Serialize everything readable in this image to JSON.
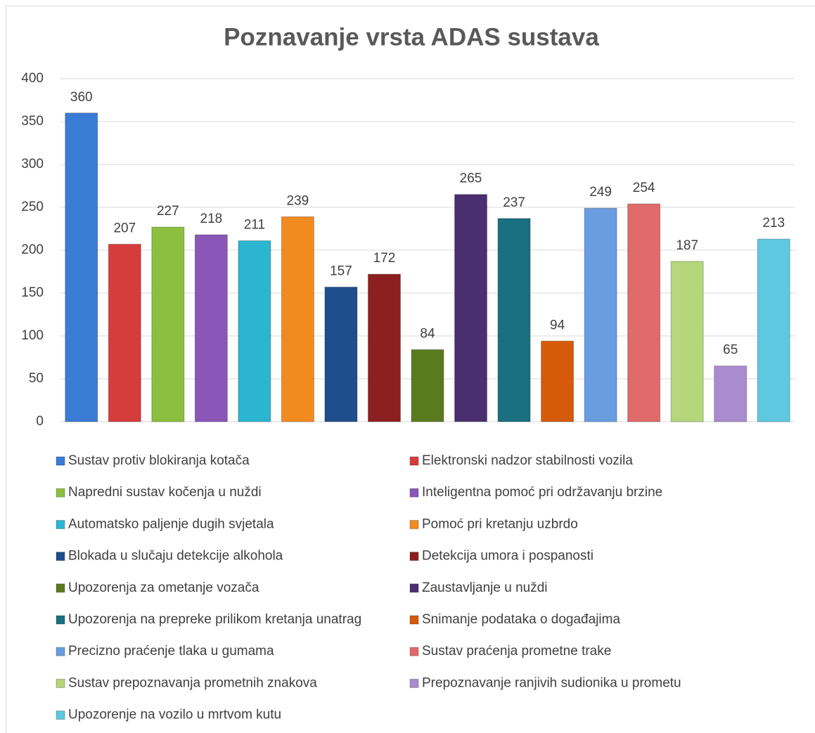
{
  "chart_data": {
    "type": "bar",
    "title": "Poznavanje vrsta ADAS sustava",
    "ylim": [
      0,
      400
    ],
    "yticks": [
      0,
      50,
      100,
      150,
      200,
      250,
      300,
      350,
      400
    ],
    "grid": true,
    "legend": "bottom",
    "series": [
      {
        "name": "Sustav protiv blokiranja kotača",
        "color": "#3a7bd5",
        "values": [
          360
        ]
      },
      {
        "name": "Elektronski nadzor stabilnosti vozila",
        "color": "#d63c3c",
        "values": [
          207
        ]
      },
      {
        "name": "Napredni sustav kočenja u nuždi",
        "color": "#8cbf3f",
        "values": [
          227
        ]
      },
      {
        "name": "Inteligentna pomoć pri održavanju brzine",
        "color": "#8a56b8",
        "values": [
          218
        ]
      },
      {
        "name": "Automatsko paljenje dugih svjetala",
        "color": "#2cb5d0",
        "values": [
          211
        ]
      },
      {
        "name": "Pomoć pri kretanju uzbrdo",
        "color": "#f28b1f",
        "values": [
          239
        ]
      },
      {
        "name": "Blokada u slučaju detekcije alkohola",
        "color": "#1f4e8c",
        "values": [
          157
        ]
      },
      {
        "name": "Detekcija umora i pospanosti",
        "color": "#8c1f1f",
        "values": [
          172
        ]
      },
      {
        "name": "Upozorenja za ometanje vozača",
        "color": "#5a7a1f",
        "values": [
          84
        ]
      },
      {
        "name": "Zaustavljanje u nuždi",
        "color": "#4a2f70",
        "values": [
          265
        ]
      },
      {
        "name": "Upozorenja na prepreke prilikom kretanja unatrag",
        "color": "#1a6f80",
        "values": [
          237
        ]
      },
      {
        "name": "Snimanje podataka o događajima",
        "color": "#d65a0a",
        "values": [
          94
        ]
      },
      {
        "name": "Precizno praćenje tlaka u gumama",
        "color": "#6a9de0",
        "values": [
          249
        ]
      },
      {
        "name": "Sustav praćenja prometne trake",
        "color": "#e06a6a",
        "values": [
          254
        ]
      },
      {
        "name": "Sustav prepoznavanja prometnih znakova",
        "color": "#b5d67a",
        "values": [
          187
        ]
      },
      {
        "name": "Prepoznavanje ranjivih sudionika u prometu",
        "color": "#a98bd0",
        "values": [
          65
        ]
      },
      {
        "name": "Upozorenje na vozilo u mrtvom kutu",
        "color": "#5ec8e0",
        "values": [
          213
        ]
      }
    ]
  }
}
